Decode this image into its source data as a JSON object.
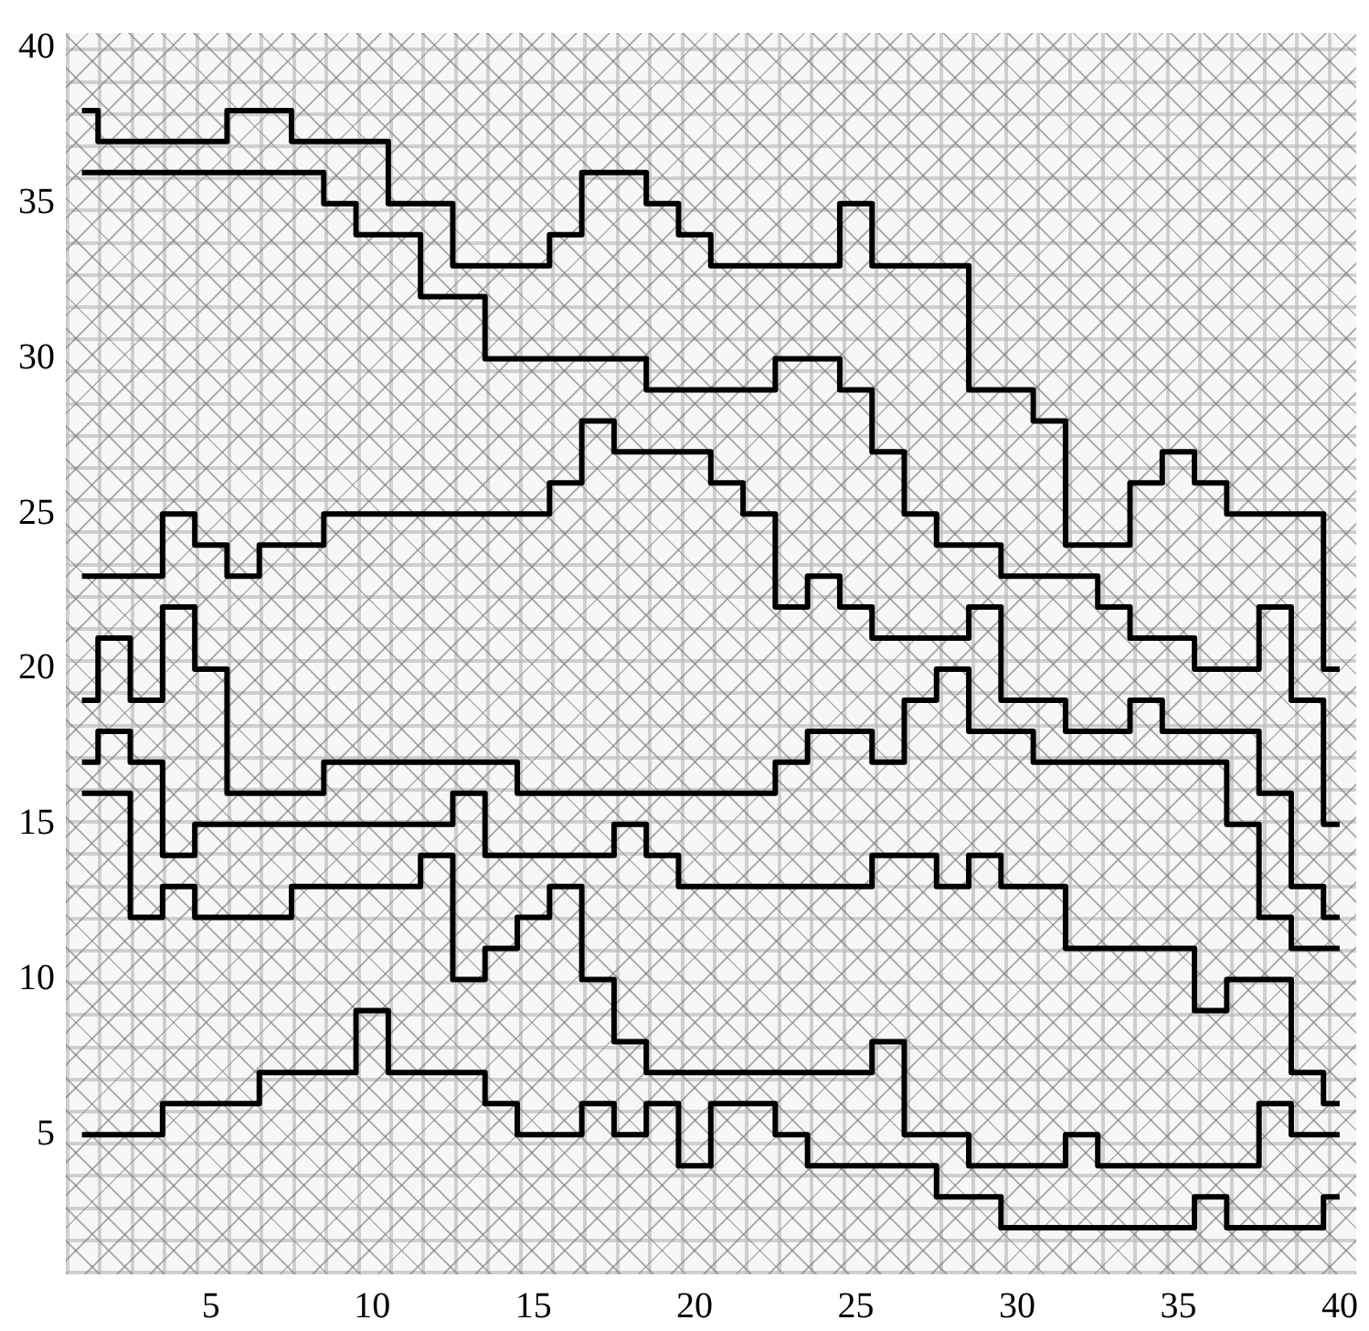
{
  "chart_data": {
    "type": "step",
    "x": [
      1,
      2,
      3,
      4,
      5,
      6,
      7,
      8,
      9,
      10,
      11,
      12,
      13,
      14,
      15,
      16,
      17,
      18,
      19,
      20,
      21,
      22,
      23,
      24,
      25,
      26,
      27,
      28,
      29,
      30,
      31,
      32,
      33,
      34,
      35,
      36,
      37,
      38,
      39,
      40
    ],
    "series": [
      {
        "color": "#000000",
        "values": [
          38,
          37,
          37,
          37,
          37,
          38,
          38,
          37,
          37,
          37,
          35,
          35,
          33,
          33,
          33,
          34,
          36,
          36,
          35,
          34,
          33,
          33,
          33,
          33,
          35,
          33,
          33,
          33,
          29,
          29,
          28,
          24,
          24,
          26,
          27,
          26,
          25,
          25,
          25,
          20
        ]
      },
      {
        "color": "#000000",
        "values": [
          36,
          36,
          36,
          36,
          36,
          36,
          36,
          36,
          35,
          34,
          34,
          32,
          32,
          30,
          30,
          30,
          30,
          30,
          29,
          29,
          29,
          29,
          30,
          30,
          29,
          27,
          25,
          24,
          24,
          23,
          23,
          23,
          22,
          21,
          21,
          20,
          20,
          22,
          19,
          15
        ]
      },
      {
        "color": "#000000",
        "values": [
          23,
          23,
          23,
          25,
          24,
          23,
          24,
          24,
          25,
          25,
          25,
          25,
          25,
          25,
          25,
          26,
          28,
          27,
          27,
          27,
          26,
          25,
          22,
          23,
          22,
          21,
          21,
          21,
          22,
          19,
          19,
          18,
          18,
          19,
          18,
          18,
          18,
          16,
          13,
          12
        ]
      },
      {
        "color": "#000000",
        "values": [
          19,
          21,
          19,
          22,
          20,
          16,
          16,
          16,
          17,
          17,
          17,
          17,
          17,
          17,
          16,
          16,
          16,
          16,
          16,
          16,
          16,
          16,
          17,
          18,
          18,
          17,
          19,
          20,
          18,
          18,
          17,
          17,
          17,
          17,
          17,
          17,
          15,
          12,
          11,
          11
        ]
      },
      {
        "color": "#000000",
        "values": [
          17,
          18,
          17,
          14,
          15,
          15,
          15,
          15,
          15,
          15,
          15,
          15,
          16,
          14,
          14,
          14,
          14,
          15,
          14,
          13,
          13,
          13,
          13,
          13,
          13,
          14,
          14,
          13,
          14,
          13,
          13,
          11,
          11,
          11,
          11,
          9,
          10,
          10,
          7,
          6
        ]
      },
      {
        "color": "#000000",
        "values": [
          16,
          16,
          12,
          13,
          12,
          12,
          12,
          13,
          13,
          13,
          13,
          14,
          10,
          11,
          12,
          13,
          10,
          8,
          7,
          7,
          7,
          7,
          7,
          7,
          7,
          8,
          5,
          5,
          4,
          4,
          4,
          5,
          4,
          4,
          4,
          4,
          4,
          6,
          5,
          5
        ]
      },
      {
        "color": "#000000",
        "values": [
          5,
          5,
          5,
          6,
          6,
          6,
          7,
          7,
          7,
          9,
          7,
          7,
          7,
          6,
          5,
          5,
          6,
          5,
          6,
          4,
          6,
          6,
          5,
          4,
          4,
          4,
          4,
          3,
          3,
          2,
          2,
          2,
          2,
          2,
          2,
          3,
          2,
          2,
          2,
          3
        ]
      }
    ],
    "xlim": [
      0.5,
      40.5
    ],
    "xticks": [
      5,
      10,
      15,
      20,
      25,
      30,
      35,
      40
    ],
    "ylim": [
      0.5,
      40.5
    ],
    "yticks": [
      5,
      10,
      15,
      20,
      25,
      30,
      35,
      40
    ],
    "marker": "none",
    "line_style": "solid",
    "legend": false
  }
}
